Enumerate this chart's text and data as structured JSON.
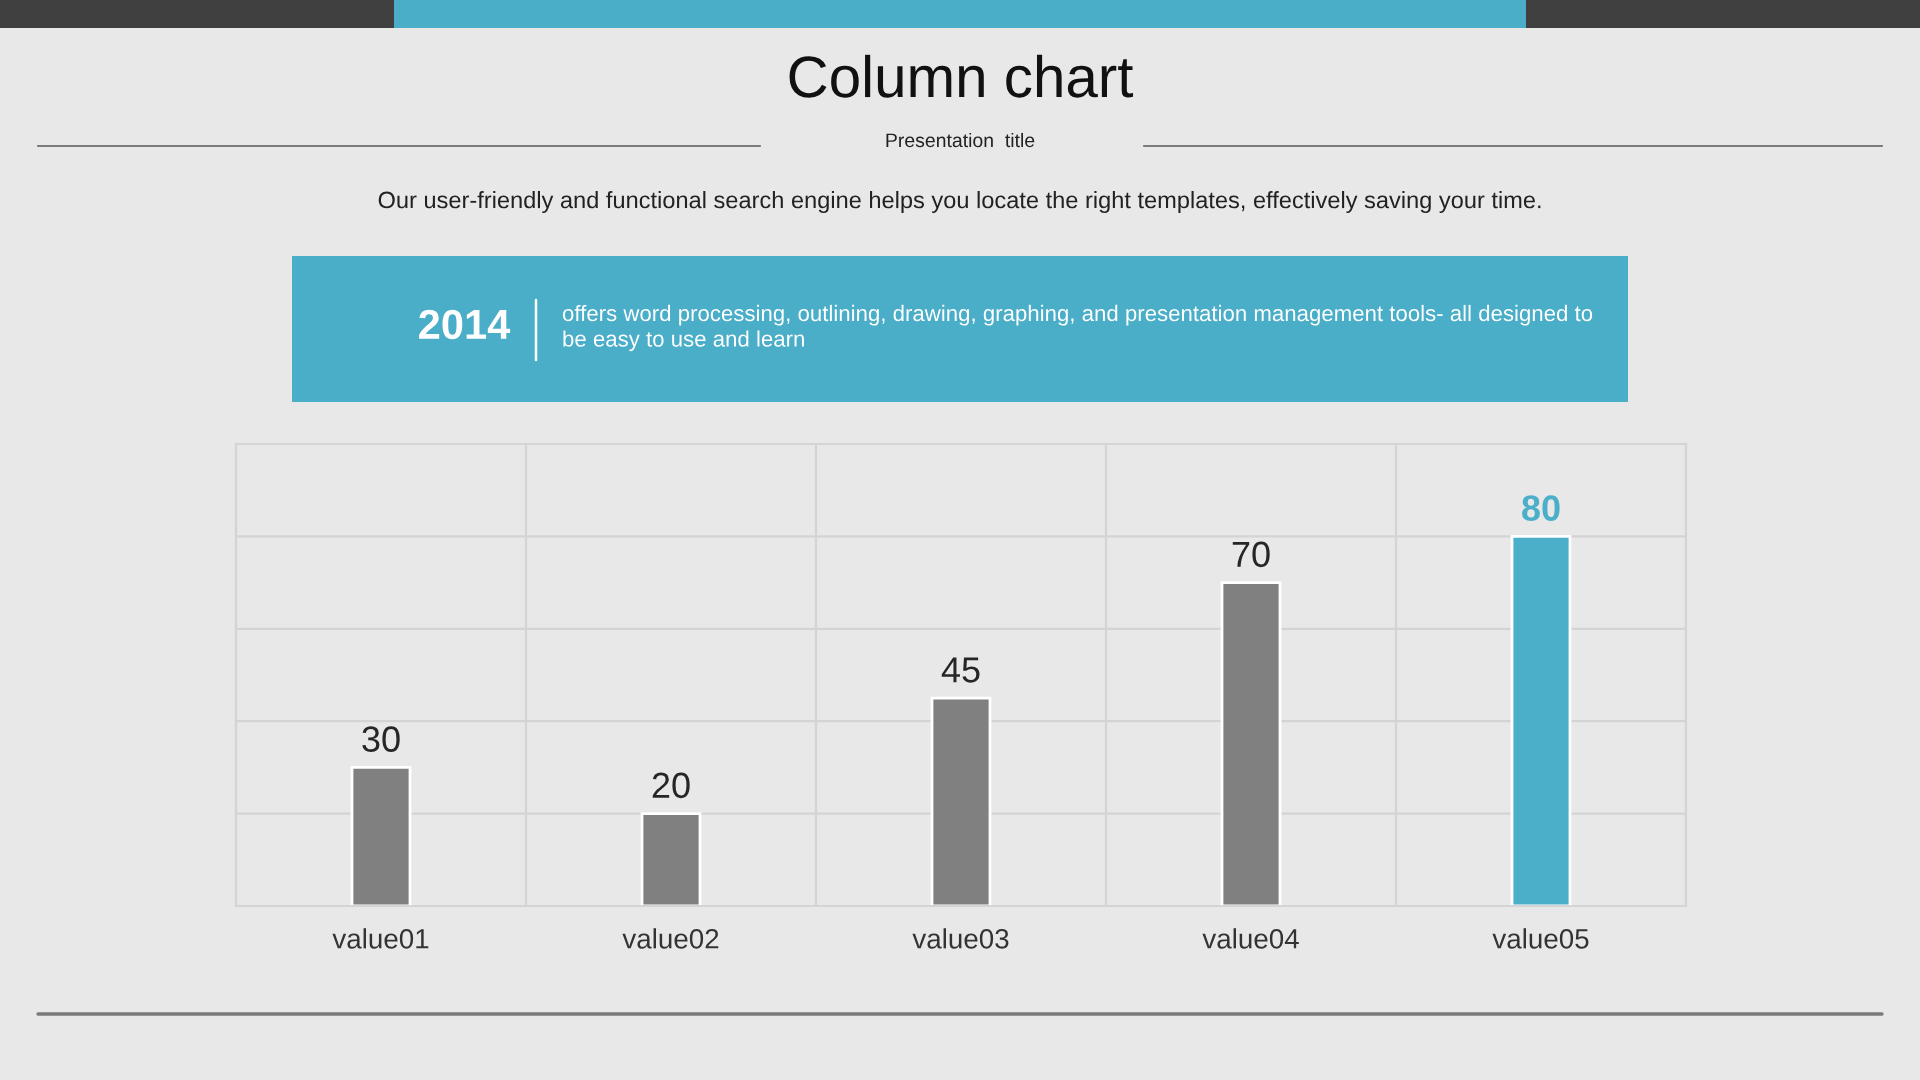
{
  "chart_data": {
    "type": "bar",
    "title": "Column chart",
    "subtitle": "Presentation  title",
    "annotations": [
      "Our user-friendly and functional search engine helps you locate the right templates, effectively saving your time.",
      "2014",
      "offers word processing, outlining, drawing, graphing, and presentation management tools- all designed to be easy to use and learn"
    ],
    "categories": [
      "value01",
      "value02",
      "value03",
      "value04",
      "value05"
    ],
    "values": [
      30,
      20,
      45,
      70,
      80
    ],
    "colors": [
      "#808080",
      "#808080",
      "#808080",
      "#808080",
      "#4bafc9"
    ],
    "ylim": [
      0,
      100
    ],
    "yticks": [
      {
        "value": 0,
        "label": null
      },
      {
        "value": 20,
        "label": null
      },
      {
        "value": 40,
        "label": null
      },
      {
        "value": 60,
        "label": null
      },
      {
        "value": 80,
        "label": null
      },
      {
        "value": 100,
        "label": null
      }
    ],
    "grid": true,
    "tick_labels": "x",
    "data_labels": true
  }
}
